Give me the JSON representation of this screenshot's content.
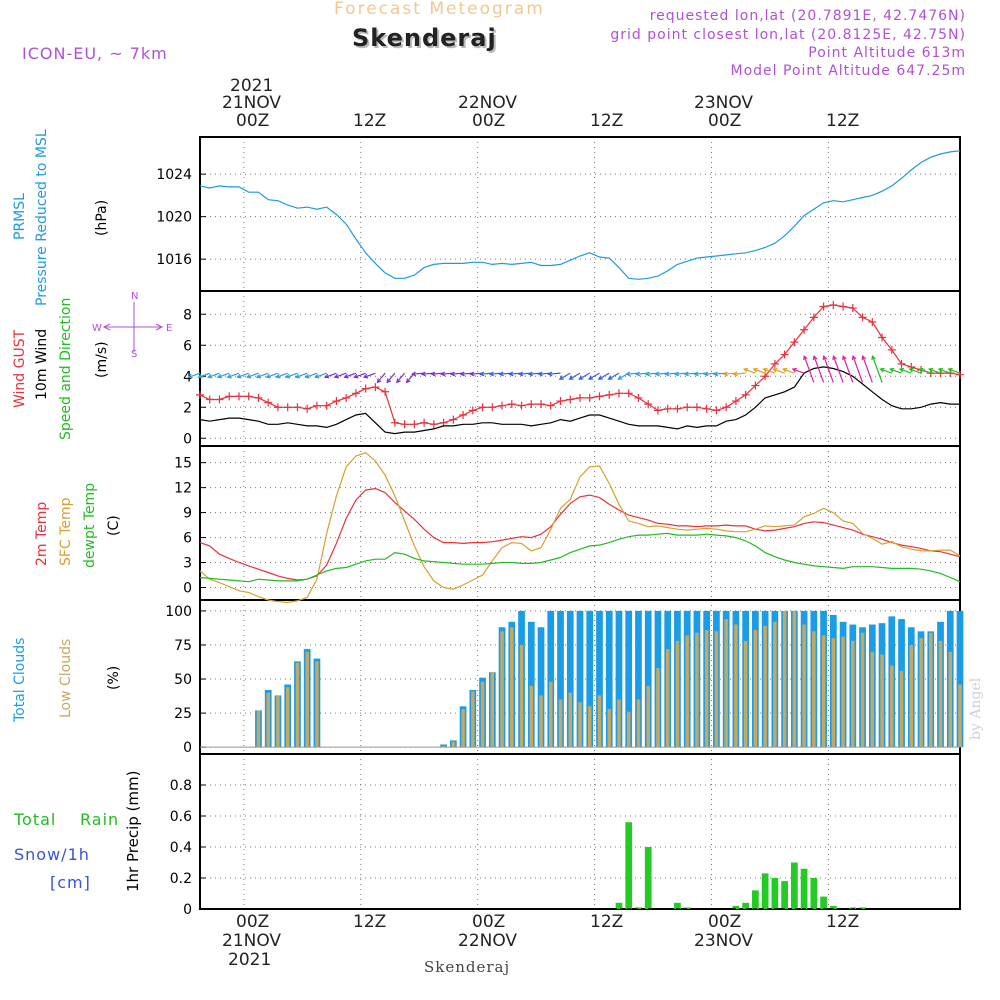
{
  "header": {
    "product": "Forecast Meteogram",
    "location": "Skenderaj",
    "model": "ICON-EU, ~ 7km",
    "requested": "requested lon,lat (20.7891E, 42.7476N)",
    "gridpoint": "grid point closest lon,lat (20.8125E, 42.75N)",
    "point_alt": "Point Altitude 613m",
    "model_alt": "Model Point Altitude 647.25m",
    "credit": "by Angel",
    "footer": "Skenderaj"
  },
  "time_axis": {
    "hours": [
      0,
      72
    ],
    "start_offset_h": -4.5,
    "end_h": 73.5,
    "tick_labels": [
      "00Z",
      "12Z",
      "00Z",
      "12Z",
      "00Z",
      "12Z"
    ],
    "tick_hours": [
      0,
      12,
      24,
      36,
      48,
      60
    ],
    "date_labels": [
      "21NOV",
      "22NOV",
      "23NOV"
    ],
    "year": "2021"
  },
  "labels": {
    "pressure": [
      "PRMSL",
      "Pressure Reduced to MSL",
      "(hPa)"
    ],
    "wind": [
      "Wind GUST",
      "10m Wind",
      "Speed and Direction",
      "(m/s)"
    ],
    "compass": {
      "n": "N",
      "s": "S",
      "w": "W",
      "e": "E"
    },
    "temp": [
      "2m Temp",
      "SFC Temp",
      "dewpt Temp",
      "(C)"
    ],
    "clouds": [
      "Total Clouds",
      "Low Clouds",
      "(%)"
    ],
    "precip": [
      "Total",
      "Rain",
      "Snow/1h",
      "[cm]",
      "1hr Precip (mm)"
    ]
  },
  "colors": {
    "pressure": "#1e9be0",
    "gust": "#e8323c",
    "wind": "#000000",
    "t2m": "#e8323c",
    "tsfc": "#d8a030",
    "dewpt": "#22bb22",
    "total_clouds": "#1a9de6",
    "low_clouds": "#c8a860",
    "rain": "#22cc22",
    "header_purple": "#b050d8",
    "header_orange": "#f0c890"
  },
  "chart_data": [
    {
      "type": "line",
      "name": "pressure",
      "title": "PRMSL Pressure Reduced to MSL",
      "ylabel": "(hPa)",
      "ylim": [
        1013,
        1027.5
      ],
      "yticks": [
        1016,
        1020,
        1024
      ],
      "x": [
        -4.5,
        -3.5,
        -2.5,
        -1.5,
        -0.5,
        0.5,
        1.5,
        2.5,
        3.5,
        4.5,
        5.5,
        6.5,
        7.5,
        8.5,
        9.5,
        10.5,
        11.5,
        12.5,
        13.5,
        14.5,
        15.5,
        16.5,
        17.5,
        18.5,
        19.5,
        20.5,
        21.5,
        22.5,
        23.5,
        24.5,
        25.5,
        26.5,
        27.5,
        28.5,
        29.5,
        30.5,
        31.5,
        32.5,
        33.5,
        34.5,
        35.5,
        36.5,
        37.5,
        38.5,
        39.5,
        40.5,
        41.5,
        42.5,
        43.5,
        44.5,
        45.5,
        46.5,
        47.5,
        48.5,
        49.5,
        50.5,
        51.5,
        52.5,
        53.5,
        54.5,
        55.5,
        56.5,
        57.5,
        58.5,
        59.5,
        60.5,
        61.5,
        62.5,
        63.5,
        64.5,
        65.5,
        66.5,
        67.5,
        68.5,
        69.5,
        70.5,
        71.5,
        72.5,
        73.5
      ],
      "values": [
        1022.9,
        1022.7,
        1022.9,
        1022.8,
        1022.8,
        1022.3,
        1022.3,
        1021.6,
        1021.5,
        1021.1,
        1020.8,
        1020.9,
        1020.7,
        1020.9,
        1020.2,
        1019.3,
        1017.9,
        1016.6,
        1015.6,
        1014.7,
        1014.2,
        1014.2,
        1014.5,
        1015.2,
        1015.5,
        1015.6,
        1015.6,
        1015.6,
        1015.7,
        1015.7,
        1015.5,
        1015.6,
        1015.5,
        1015.6,
        1015.7,
        1015.4,
        1015.4,
        1015.5,
        1015.9,
        1016.3,
        1016.6,
        1016.2,
        1016.1,
        1015.2,
        1014.2,
        1014.1,
        1014.2,
        1014.4,
        1014.9,
        1015.5,
        1015.8,
        1016.1,
        1016.2,
        1016.3,
        1016.4,
        1016.5,
        1016.6,
        1016.8,
        1017.1,
        1017.5,
        1018.2,
        1019.1,
        1020.1,
        1020.7,
        1021.3,
        1021.5,
        1021.4,
        1021.6,
        1021.8,
        1022.0,
        1022.4,
        1022.9,
        1023.6,
        1024.4,
        1025.1,
        1025.6,
        1025.9,
        1026.1,
        1026.2
      ]
    },
    {
      "type": "line",
      "name": "wind",
      "title": "Wind GUST / 10m Wind Speed and Direction",
      "ylabel": "(m/s)",
      "ylim": [
        -0.5,
        9.5
      ],
      "yticks": [
        0,
        2,
        4,
        6,
        8
      ],
      "series": [
        {
          "name": "Wind GUST",
          "values": [
            2.8,
            2.5,
            2.5,
            2.7,
            2.7,
            2.7,
            2.6,
            2.3,
            2.0,
            2.0,
            2.0,
            1.9,
            2.1,
            2.1,
            2.4,
            2.6,
            2.9,
            3.2,
            3.3,
            3.0,
            1.0,
            0.9,
            0.9,
            1.0,
            0.9,
            1.0,
            1.2,
            1.5,
            1.8,
            2.0,
            2.0,
            2.1,
            2.2,
            2.1,
            2.2,
            2.2,
            2.1,
            2.4,
            2.5,
            2.6,
            2.6,
            2.7,
            2.8,
            2.9,
            2.9,
            2.6,
            2.2,
            1.8,
            1.9,
            1.9,
            2.0,
            2.0,
            1.9,
            1.8,
            2.0,
            2.4,
            2.8,
            3.4,
            4.0,
            4.8,
            5.4,
            6.2,
            7.0,
            7.8,
            8.5,
            8.6,
            8.5,
            8.4,
            7.8,
            7.5,
            6.5,
            5.7,
            4.8,
            4.6,
            4.4,
            4.2,
            4.2,
            4.2,
            4.1
          ]
        },
        {
          "name": "10m Wind",
          "values": [
            1.2,
            1.1,
            1.2,
            1.3,
            1.3,
            1.2,
            1.1,
            0.9,
            0.9,
            1.0,
            0.9,
            0.8,
            0.8,
            0.7,
            0.9,
            1.2,
            1.5,
            1.6,
            1.0,
            0.4,
            0.3,
            0.4,
            0.4,
            0.5,
            0.6,
            0.8,
            0.8,
            0.9,
            0.9,
            1.0,
            1.0,
            0.9,
            0.9,
            0.9,
            0.8,
            0.9,
            1.0,
            1.2,
            1.1,
            1.3,
            1.5,
            1.5,
            1.3,
            1.1,
            0.9,
            0.8,
            0.8,
            0.8,
            0.7,
            0.6,
            0.8,
            0.7,
            0.8,
            0.8,
            1.1,
            1.2,
            1.5,
            2.0,
            2.6,
            2.8,
            3.0,
            3.3,
            4.2,
            4.5,
            4.6,
            4.5,
            4.3,
            4.0,
            3.5,
            3.0,
            2.5,
            2.1,
            1.9,
            1.9,
            2.0,
            2.2,
            2.3,
            2.2,
            2.2
          ]
        }
      ],
      "direction_glyphs": "colored arrows near 4 m/s (blue, purple, green, orange, magenta)"
    },
    {
      "type": "line",
      "name": "temperature",
      "title": "2m Temp / SFC Temp / dewpt Temp",
      "ylabel": "(C)",
      "ylim": [
        -1.5,
        17
      ],
      "yticks": [
        0,
        3,
        6,
        9,
        12,
        15
      ],
      "series": [
        {
          "name": "2m Temp",
          "values": [
            5.4,
            5.0,
            4.0,
            3.5,
            3.0,
            2.6,
            2.2,
            1.8,
            1.4,
            1.1,
            0.9,
            1.0,
            1.4,
            2.7,
            5.3,
            8.3,
            10.5,
            11.7,
            11.9,
            11.4,
            10.2,
            9.2,
            8.2,
            7.0,
            6.0,
            5.4,
            5.4,
            5.3,
            5.4,
            5.4,
            5.5,
            5.7,
            5.9,
            6.1,
            6.0,
            6.4,
            7.3,
            8.8,
            10.1,
            10.9,
            11.1,
            10.8,
            10.0,
            9.3,
            8.7,
            8.4,
            8.1,
            7.7,
            7.6,
            7.4,
            7.4,
            7.3,
            7.4,
            7.4,
            7.5,
            7.4,
            7.4,
            7.0,
            6.8,
            6.9,
            7.1,
            7.3,
            7.7,
            7.9,
            7.8,
            7.5,
            7.2,
            6.9,
            6.4,
            6.1,
            5.8,
            5.4,
            5.1,
            4.9,
            4.7,
            4.4,
            4.3,
            4.0,
            3.7
          ]
        },
        {
          "name": "SFC Temp",
          "values": [
            2.0,
            1.0,
            0.6,
            0.1,
            -0.4,
            -0.6,
            -1.1,
            -1.5,
            -1.7,
            -1.8,
            -1.6,
            -1.2,
            1.0,
            6.5,
            11.0,
            14.5,
            15.8,
            16.2,
            15.2,
            13.5,
            11.0,
            8.0,
            5.0,
            2.5,
            0.8,
            0.0,
            -0.2,
            0.3,
            0.9,
            1.5,
            3.2,
            4.8,
            5.4,
            5.3,
            4.4,
            4.8,
            7.0,
            9.5,
            10.6,
            13.3,
            14.5,
            14.6,
            12.5,
            10.0,
            8.0,
            7.7,
            7.3,
            7.4,
            7.2,
            7.0,
            6.9,
            7.0,
            7.1,
            7.0,
            6.8,
            6.7,
            6.7,
            7.0,
            7.4,
            7.3,
            7.4,
            7.5,
            8.5,
            8.9,
            9.5,
            9.0,
            8.0,
            7.7,
            6.5,
            5.9,
            5.2,
            5.5,
            4.9,
            4.6,
            4.4,
            4.4,
            4.5,
            4.5,
            3.8
          ]
        },
        {
          "name": "dewpt Temp",
          "values": [
            1.2,
            1.1,
            1.0,
            0.9,
            0.8,
            0.7,
            1.0,
            0.9,
            0.8,
            0.8,
            0.8,
            1.0,
            1.5,
            2.0,
            2.3,
            2.4,
            2.8,
            3.2,
            3.4,
            3.4,
            4.2,
            4.0,
            3.5,
            3.2,
            3.1,
            3.0,
            2.9,
            2.8,
            2.8,
            2.8,
            2.9,
            3.0,
            3.0,
            2.9,
            2.9,
            3.0,
            3.3,
            3.6,
            4.2,
            4.6,
            5.0,
            5.1,
            5.4,
            5.8,
            6.1,
            6.3,
            6.3,
            6.4,
            6.5,
            6.3,
            6.3,
            6.3,
            6.4,
            6.3,
            6.2,
            6.0,
            5.6,
            5.0,
            4.2,
            3.7,
            3.3,
            3.0,
            2.8,
            2.6,
            2.5,
            2.4,
            2.3,
            2.5,
            2.5,
            2.5,
            2.4,
            2.3,
            2.3,
            2.3,
            2.2,
            2.0,
            1.7,
            1.2,
            0.7
          ]
        }
      ]
    },
    {
      "type": "bar",
      "name": "clouds",
      "title": "Total Clouds / Low Clouds",
      "ylabel": "(%)",
      "ylim": [
        -5,
        108
      ],
      "yticks": [
        0,
        25,
        50,
        75,
        100
      ],
      "series": [
        {
          "name": "Total Clouds",
          "values": [
            0,
            0,
            0,
            0,
            0,
            0,
            27,
            42,
            38,
            46,
            63,
            72,
            65,
            0,
            0,
            0,
            0,
            0,
            0,
            0,
            0,
            0,
            0,
            0,
            0,
            2,
            5,
            30,
            42,
            51,
            55,
            88,
            92,
            100,
            92,
            88,
            100,
            100,
            100,
            100,
            100,
            100,
            100,
            100,
            100,
            100,
            100,
            100,
            100,
            100,
            100,
            100,
            100,
            100,
            100,
            100,
            100,
            100,
            100,
            100,
            100,
            100,
            100,
            100,
            100,
            97,
            92,
            90,
            88,
            90,
            91,
            96,
            94,
            88,
            85,
            85,
            92,
            100,
            100
          ]
        },
        {
          "name": "Low Clouds",
          "values": [
            0,
            0,
            0,
            0,
            0,
            0,
            27,
            40,
            38,
            44,
            62,
            70,
            63,
            0,
            0,
            0,
            0,
            0,
            0,
            0,
            0,
            0,
            0,
            0,
            0,
            1,
            4,
            28,
            41,
            48,
            55,
            85,
            88,
            75,
            45,
            38,
            48,
            35,
            40,
            33,
            30,
            38,
            28,
            35,
            26,
            35,
            45,
            58,
            72,
            78,
            82,
            84,
            86,
            85,
            94,
            90,
            78,
            86,
            89,
            92,
            100,
            100,
            90,
            85,
            82,
            80,
            81,
            78,
            84,
            70,
            68,
            60,
            56,
            75,
            80,
            84,
            78,
            70,
            46
          ]
        }
      ]
    },
    {
      "type": "bar",
      "name": "precip",
      "title": "Total Rain Snow/1h [cm]",
      "ylabel": "1hr Precip (mm)",
      "ylim": [
        0,
        1.0
      ],
      "yticks": [
        0,
        0.2,
        0.4,
        0.6,
        0.8
      ],
      "series": [
        {
          "name": "Total Rain",
          "values": [
            0,
            0,
            0,
            0,
            0,
            0,
            0,
            0,
            0,
            0,
            0,
            0,
            0,
            0,
            0,
            0,
            0,
            0,
            0,
            0,
            0,
            0,
            0,
            0,
            0,
            0,
            0,
            0,
            0,
            0,
            0,
            0,
            0,
            0,
            0,
            0,
            0,
            0,
            0,
            0,
            0,
            0,
            0,
            0.04,
            0.56,
            0.01,
            0.4,
            0,
            0,
            0.04,
            0.01,
            0,
            0,
            0,
            0,
            0.02,
            0.04,
            0.12,
            0.23,
            0.2,
            0.18,
            0.3,
            0.26,
            0.2,
            0.08,
            0.02,
            0,
            0.01,
            0.01,
            0,
            0,
            0,
            0,
            0,
            0,
            0,
            0,
            0,
            0
          ]
        }
      ]
    }
  ]
}
